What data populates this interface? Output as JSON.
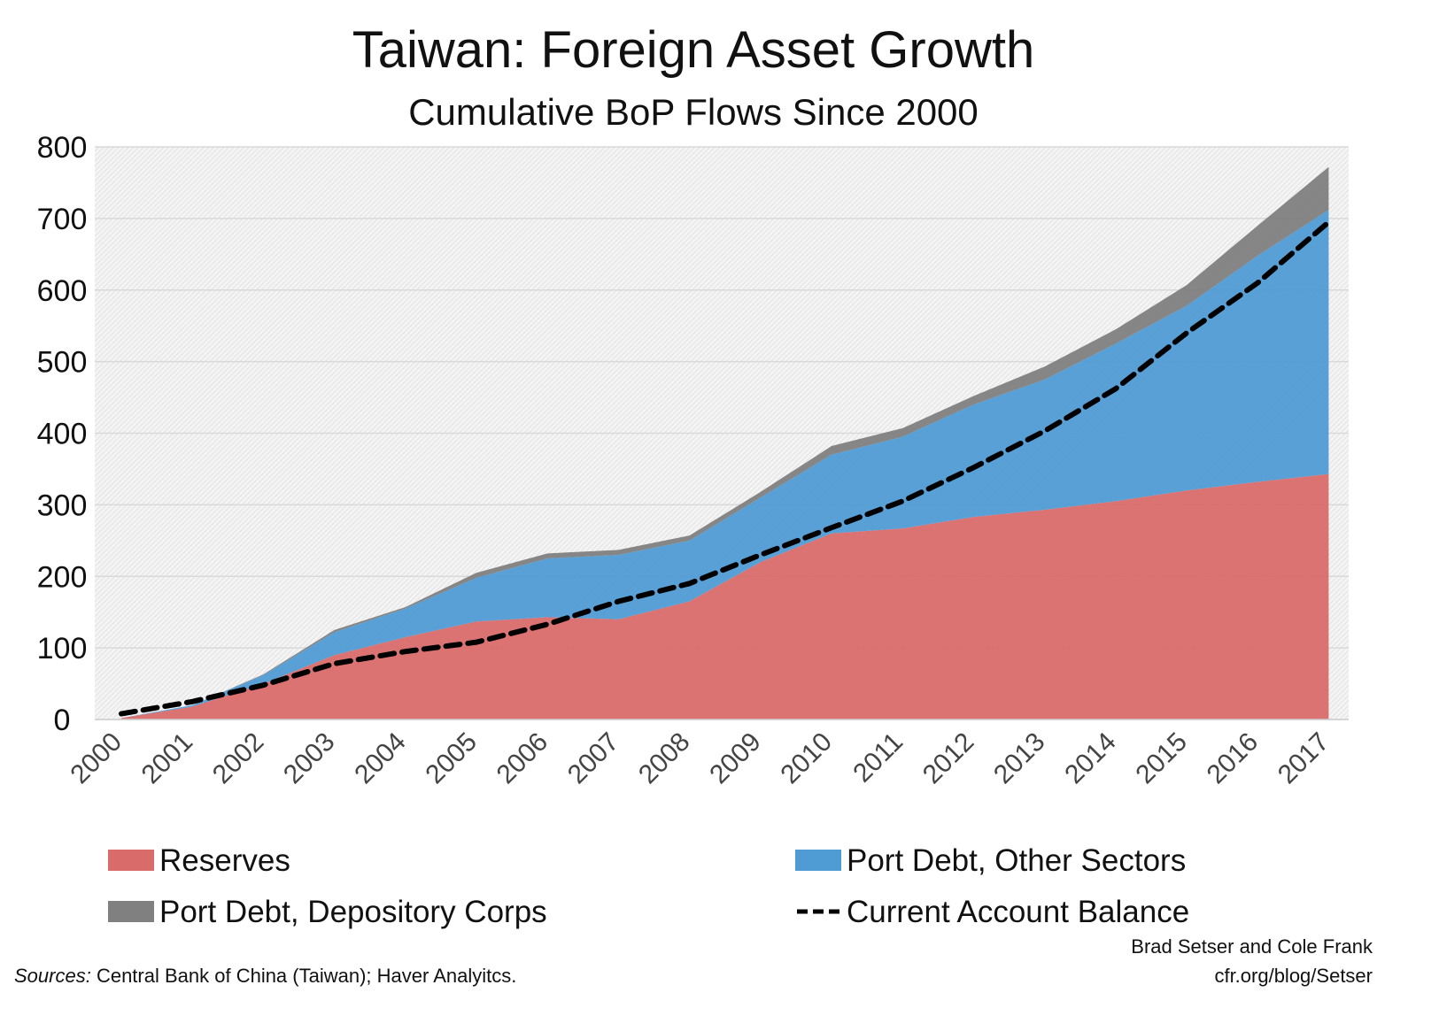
{
  "chart_data": {
    "type": "area",
    "stacked": true,
    "title": "Taiwan: Foreign Asset Growth",
    "subtitle": "Cumulative BoP Flows Since 2000",
    "xlabel": "",
    "ylabel": "",
    "ylim": [
      0,
      800
    ],
    "yticks": [
      "0",
      "100",
      "200",
      "300",
      "400",
      "500",
      "600",
      "700",
      "800"
    ],
    "categories": [
      "2000",
      "2001",
      "2002",
      "2003",
      "2004",
      "2005",
      "2006",
      "2007",
      "2008",
      "2009",
      "2010",
      "2011",
      "2012",
      "2013",
      "2014",
      "2015",
      "2016",
      "2017"
    ],
    "grid": true,
    "legend_position": "bottom",
    "series": [
      {
        "name": "Reserves",
        "kind": "area",
        "color": "#d96b6b",
        "values": [
          2,
          18,
          50,
          90,
          115,
          137,
          143,
          140,
          165,
          220,
          260,
          267,
          283,
          293,
          305,
          320,
          332,
          343
        ]
      },
      {
        "name": "Port Debt, Other Sectors",
        "kind": "area",
        "color": "#4f9bd4",
        "values": [
          0,
          2,
          12,
          32,
          40,
          61,
          82,
          90,
          85,
          90,
          110,
          128,
          157,
          182,
          220,
          258,
          316,
          369
        ]
      },
      {
        "name": "Port Debt, Depository Corps",
        "kind": "area",
        "color": "#808080",
        "values": [
          0,
          0,
          1,
          3,
          2,
          7,
          7,
          7,
          7,
          8,
          12,
          12,
          12,
          18,
          20,
          29,
          42,
          60
        ]
      },
      {
        "name": "Current Account Balance",
        "kind": "line",
        "style": "dashed",
        "color": "#000000",
        "values": [
          8,
          25,
          48,
          78,
          95,
          108,
          133,
          165,
          190,
          230,
          268,
          305,
          352,
          403,
          462,
          540,
          610,
          695
        ]
      }
    ]
  },
  "footer": {
    "sources_label": "Sources:",
    "sources_text": " Central Bank of China (Taiwan); Haver Analyitcs.",
    "authors": "Brad Setser and Cole Frank",
    "url": "cfr.org/blog/Setser"
  }
}
